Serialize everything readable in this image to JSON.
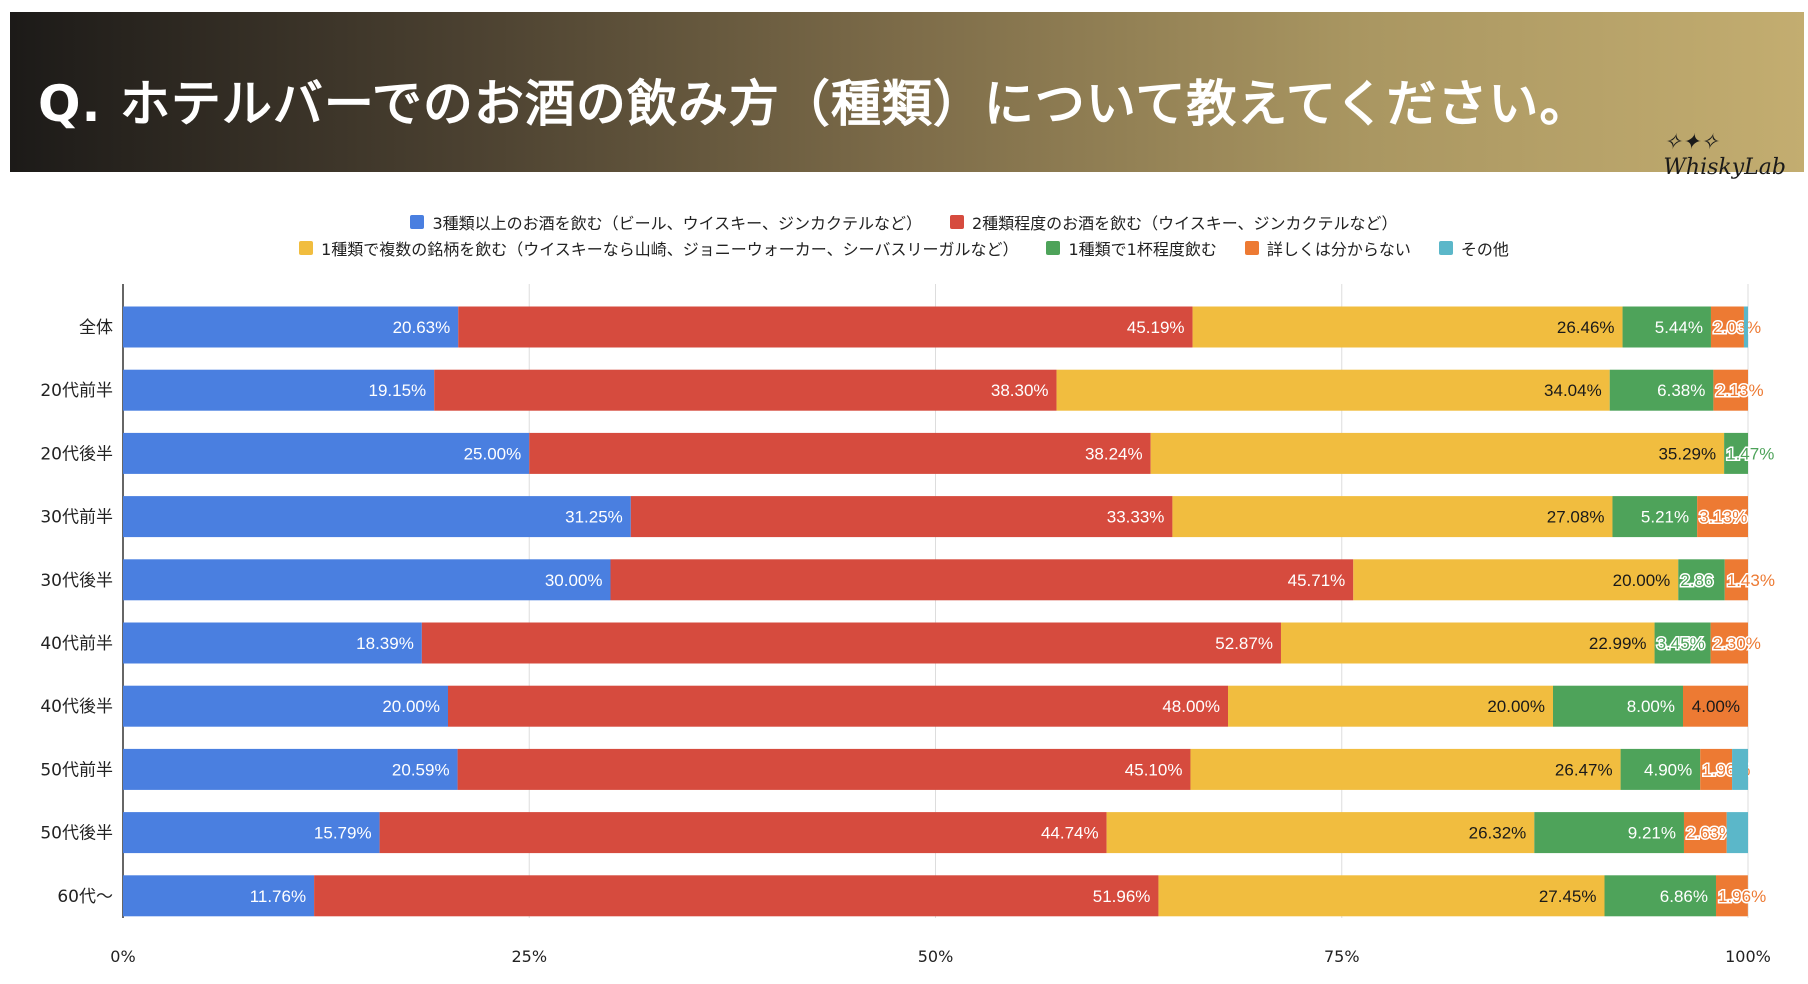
{
  "header": {
    "title": "Q. ホテルバーでのお酒の飲み方（種類）について教えてください。",
    "logo": "WhiskyLab"
  },
  "chart_data": {
    "type": "bar",
    "orientation": "horizontal-stacked-100",
    "title": "Q. ホテルバーでのお酒の飲み方（種類）について教えてください。",
    "legend_position": "top",
    "xlim": [
      0,
      100
    ],
    "x_ticks": [
      "0%",
      "25%",
      "50%",
      "75%",
      "100%"
    ],
    "categories": [
      "全体",
      "20代前半",
      "20代後半",
      "30代前半",
      "30代後半",
      "40代前半",
      "40代後半",
      "50代前半",
      "50代後半",
      "60代〜"
    ],
    "series": [
      {
        "name": "3種類以上のお酒を飲む（ビール、ウイスキー、ジンカクテルなど）",
        "color": "#4a7fe0",
        "values": [
          20.63,
          19.15,
          25.0,
          31.25,
          30.0,
          18.39,
          20.0,
          20.59,
          15.79,
          11.76
        ],
        "labels": [
          "20.63%",
          "19.15%",
          "25.00%",
          "31.25%",
          "30.00%",
          "18.39%",
          "20.00%",
          "20.59%",
          "15.79%",
          "11.76%"
        ]
      },
      {
        "name": "2種類程度のお酒を飲む（ウイスキー、ジンカクテルなど）",
        "color": "#d64b3e",
        "values": [
          45.19,
          38.3,
          38.24,
          33.33,
          45.71,
          52.87,
          48.0,
          45.1,
          44.74,
          51.96
        ],
        "labels": [
          "45.19%",
          "38.30%",
          "38.24%",
          "33.33%",
          "45.71%",
          "52.87%",
          "48.00%",
          "45.10%",
          "44.74%",
          "51.96%"
        ]
      },
      {
        "name": "1種類で複数の銘柄を飲む（ウイスキーなら山崎、ジョニーウォーカー、シーバスリーガルなど）",
        "color": "#f1bd3f",
        "values": [
          26.46,
          34.04,
          35.29,
          27.08,
          20.0,
          22.99,
          20.0,
          26.47,
          26.32,
          27.45
        ],
        "labels": [
          "26.46%",
          "34.04%",
          "35.29%",
          "27.08%",
          "20.00%",
          "22.99%",
          "20.00%",
          "26.47%",
          "26.32%",
          "27.45%"
        ]
      },
      {
        "name": "1種類で1杯程度飲む",
        "color": "#4ea35a",
        "values": [
          5.44,
          6.38,
          1.47,
          5.21,
          2.86,
          3.45,
          8.0,
          4.9,
          9.21,
          6.86
        ],
        "labels": [
          "5.44%",
          "6.38%",
          "1.47%",
          "5.21%",
          "2.86",
          "3.45%",
          "8.00%",
          "4.90%",
          "9.21%",
          "6.86%"
        ]
      },
      {
        "name": "詳しくは分からない",
        "color": "#ed7a33",
        "values": [
          2.03,
          2.13,
          0,
          3.13,
          1.43,
          2.3,
          4.0,
          1.96,
          2.63,
          1.96
        ],
        "labels": [
          "2.03%",
          "2.13%",
          "",
          "3.13%",
          "1.43%",
          "2.30%",
          "4.00%",
          "1.96%",
          "2.63%",
          "1.96%"
        ]
      },
      {
        "name": "その他",
        "color": "#5bb7c9",
        "values": [
          0.25,
          0,
          0,
          0,
          0,
          0,
          0,
          0.98,
          1.31,
          0
        ],
        "labels": [
          "",
          "",
          "",
          "",
          "",
          "",
          "",
          "",
          "",
          ""
        ]
      }
    ]
  }
}
